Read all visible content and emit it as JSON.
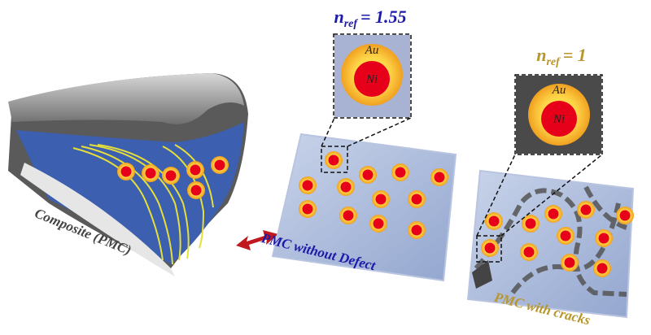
{
  "insets": [
    {
      "label": {
        "symbol": "n",
        "subscript": "ref",
        "value": "= 1.55"
      },
      "shell": "Au",
      "core": "Ni"
    },
    {
      "label": {
        "symbol": "n",
        "subscript": "ref",
        "value": "= 1"
      },
      "shell": "Au",
      "core": "Ni"
    }
  ],
  "captions": {
    "composite": "Composite (PMC)",
    "no_defect": "PMC without Defect",
    "cracks": "PMC with cracks"
  }
}
